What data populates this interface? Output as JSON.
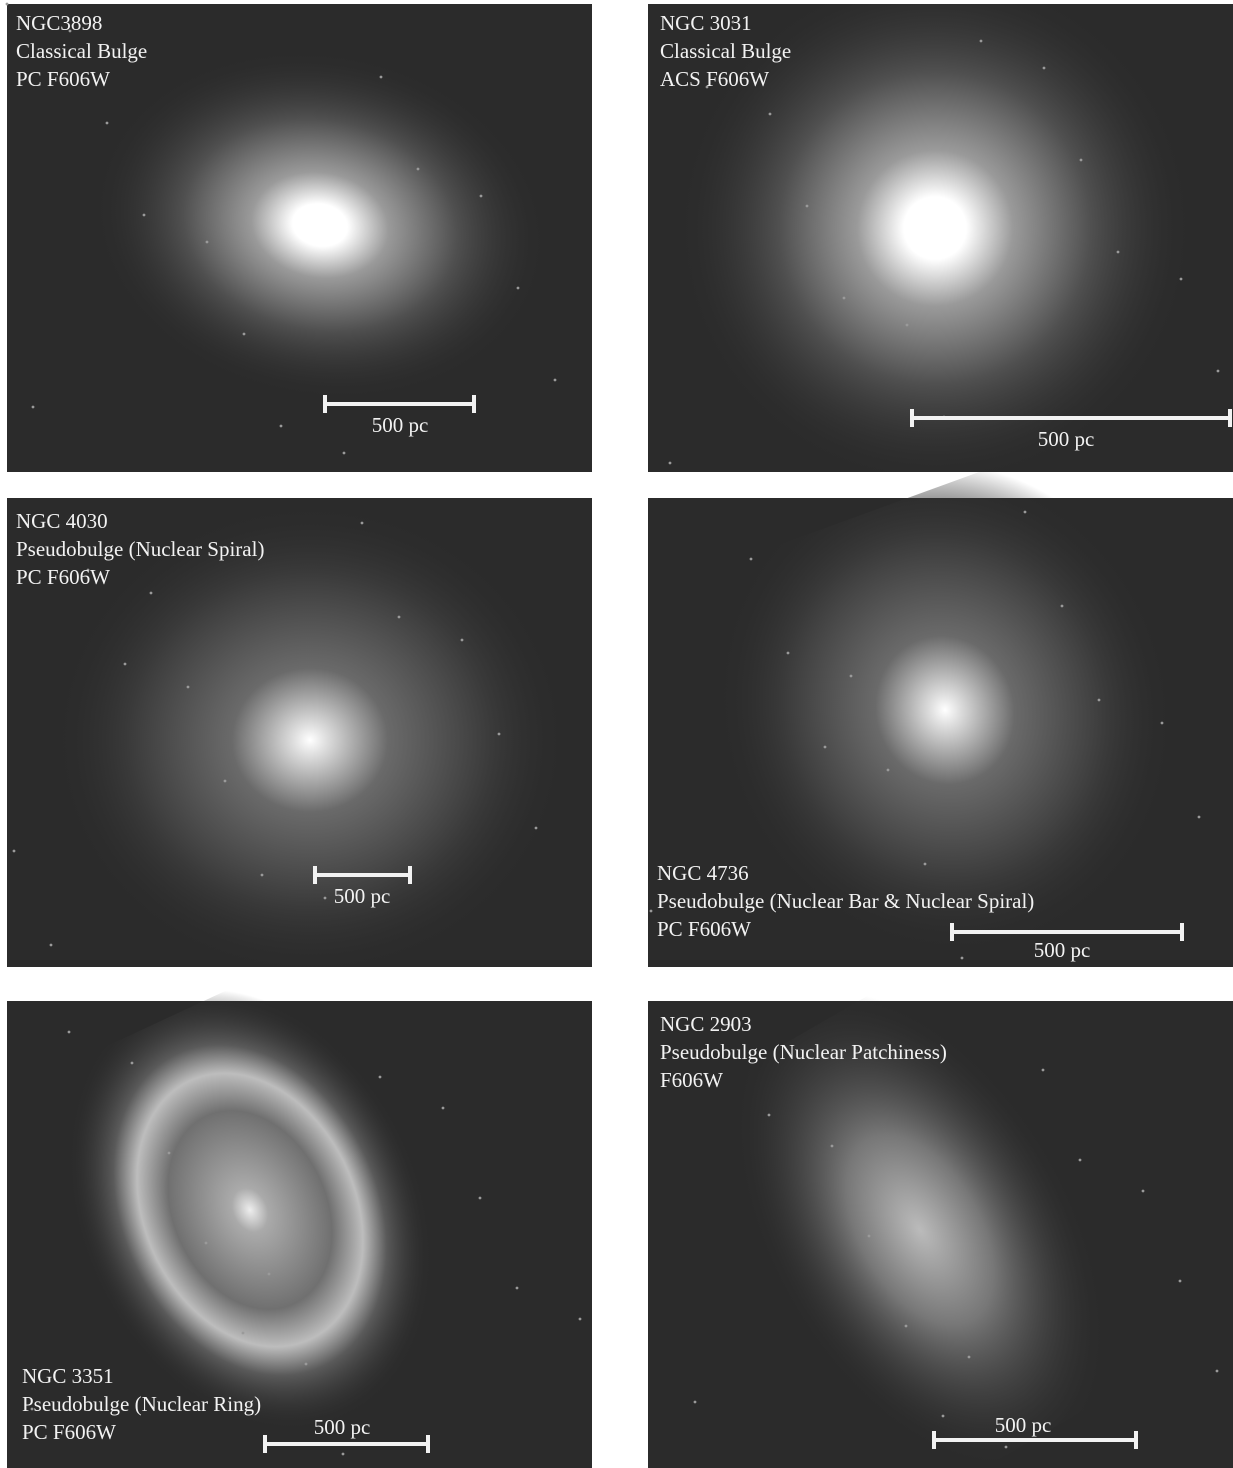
{
  "panels": [
    {
      "lines": [
        "NGC3898",
        "Classical Bulge",
        "PC F606W"
      ],
      "scale": "500 pc"
    },
    {
      "lines": [
        "NGC 3031",
        "Classical Bulge",
        "ACS F606W"
      ],
      "scale": "500 pc"
    },
    {
      "lines": [
        "NGC 4030",
        "Pseudobulge (Nuclear Spiral)",
        "PC F606W"
      ],
      "scale": "500 pc"
    },
    {
      "lines": [
        "NGC 4736",
        "Pseudobulge (Nuclear Bar & Nuclear Spiral)",
        "PC F606W"
      ],
      "scale": "500 pc"
    },
    {
      "lines": [
        "NGC 3351",
        "Pseudobulge (Nuclear Ring)",
        "PC F606W"
      ],
      "scale": "500 pc"
    },
    {
      "lines": [
        "NGC 2903",
        "Pseudobulge (Nuclear Patchiness)",
        "F606W"
      ],
      "scale": "500 pc"
    }
  ]
}
